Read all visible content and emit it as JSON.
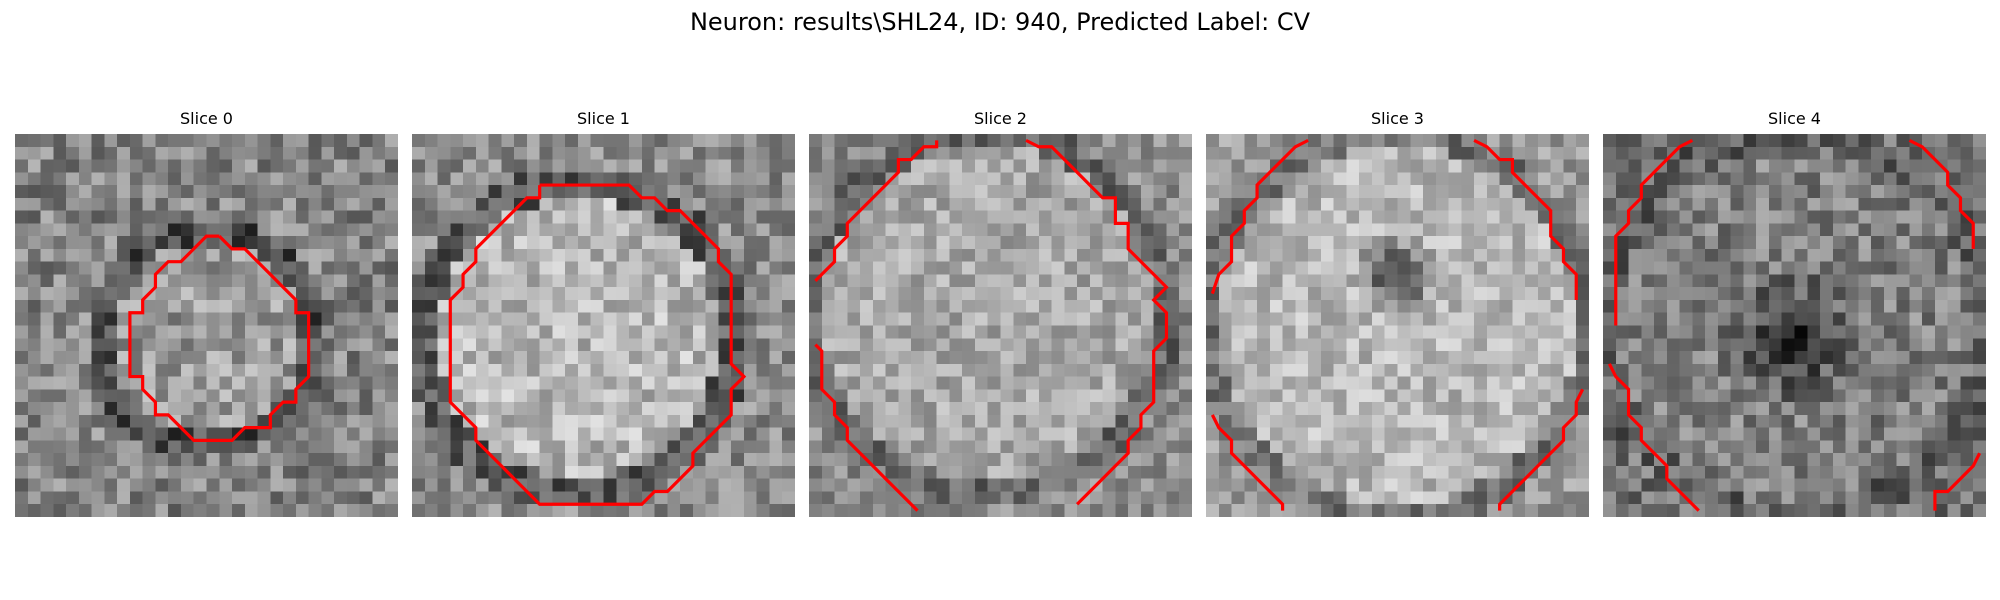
{
  "figure": {
    "title": "Neuron: results\\SHL24, ID: 940, Predicted Label: CV"
  },
  "colors": {
    "contour": "#ff0000",
    "colormap": "gray"
  },
  "panels": [
    {
      "title": "Slice 0",
      "image": "grayscale-em-patch"
    },
    {
      "title": "Slice 1",
      "image": "grayscale-em-patch"
    },
    {
      "title": "Slice 2",
      "image": "grayscale-em-patch"
    },
    {
      "title": "Slice 3",
      "image": "grayscale-em-patch"
    },
    {
      "title": "Slice 4",
      "image": "grayscale-em-patch"
    }
  ]
}
